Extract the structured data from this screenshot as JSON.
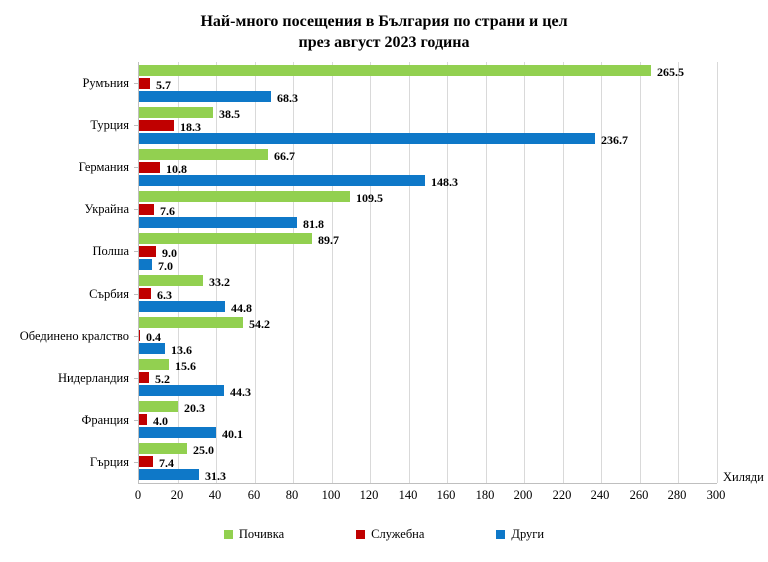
{
  "chart_data": {
    "type": "bar",
    "orientation": "horizontal",
    "title": "Най-много посещения в България по страни и цел",
    "subtitle": "през август 2023 година",
    "unit_label": "Хиляди",
    "categories": [
      "Румъния",
      "Турция",
      "Германия",
      "Украйна",
      "Полша",
      "Сърбия",
      "Обединено кралство",
      "Нидерландия",
      "Франция",
      "Гърция"
    ],
    "series": [
      {
        "name": "Почивка",
        "color": "#92D050",
        "values": [
          265.5,
          38.5,
          66.7,
          109.5,
          89.7,
          33.2,
          54.2,
          15.6,
          20.3,
          25.0
        ]
      },
      {
        "name": "Служебна",
        "color": "#C00000",
        "values": [
          5.7,
          18.3,
          10.8,
          7.6,
          9.0,
          6.3,
          0.4,
          5.2,
          4.0,
          7.4
        ]
      },
      {
        "name": "Други",
        "color": "#0E78C8",
        "values": [
          68.3,
          236.7,
          148.3,
          81.8,
          7.0,
          44.8,
          13.6,
          44.3,
          40.1,
          31.3
        ]
      }
    ],
    "xlim": [
      0,
      300
    ],
    "xtick_step": 20,
    "grid": true,
    "legend_position": "bottom",
    "value_label_decimals": 1
  }
}
